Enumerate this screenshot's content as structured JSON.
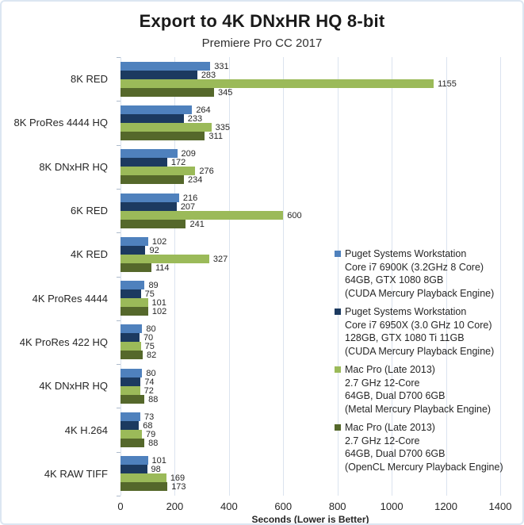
{
  "chart_data": {
    "type": "bar",
    "orientation": "horizontal",
    "title": "Export to 4K DNxHR HQ 8-bit",
    "subtitle": "Premiere Pro CC 2017",
    "xlabel": "Seconds (Lower is Better)",
    "xlim": [
      0,
      1400
    ],
    "xticks": [
      0,
      200,
      400,
      600,
      800,
      1000,
      1200,
      1400
    ],
    "grid": true,
    "grid_color": "#dbe3ef",
    "tick_color": "#aebbcc",
    "frame_border_color": "#dce6f2",
    "legend_position": "right",
    "categories": [
      "8K RED",
      "8K ProRes 4444 HQ",
      "8K DNxHR HQ",
      "6K RED",
      "4K RED",
      "4K ProRes 4444",
      "4K ProRes 422 HQ",
      "4K DNxHR HQ",
      "4K H.264",
      "4K RAW TIFF"
    ],
    "series": [
      {
        "name": "Puget Systems Workstation Core i7 6900K (3.2GHz 8 Core) 64GB, GTX 1080 8GB (CUDA Mercury Playback Engine)",
        "legend_lines": [
          "Puget Systems Workstation",
          "Core i7 6900K (3.2GHz 8 Core)",
          "64GB, GTX 1080 8GB",
          "(CUDA Mercury Playback Engine)"
        ],
        "color": "#4f81bd",
        "values": [
          331,
          264,
          209,
          216,
          102,
          89,
          80,
          80,
          73,
          101
        ]
      },
      {
        "name": "Puget Systems Workstation Core i7 6950X (3.0 GHz 10 Core) 128GB, GTX 1080 Ti 11GB (CUDA Mercury Playback Engine)",
        "legend_lines": [
          "Puget Systems Workstation",
          "Core i7 6950X (3.0 GHz 10 Core)",
          "128GB, GTX 1080 Ti 11GB",
          "(CUDA Mercury Playback Engine)"
        ],
        "color": "#1c3a60",
        "values": [
          283,
          233,
          172,
          207,
          92,
          75,
          70,
          74,
          68,
          98
        ]
      },
      {
        "name": "Mac Pro (Late 2013) 2.7 GHz 12-Core 64GB, Dual D700 6GB (Metal Mercury Playback Engine)",
        "legend_lines": [
          "Mac Pro (Late 2013)",
          "2.7 GHz 12-Core",
          "64GB, Dual D700 6GB",
          "(Metal Mercury Playback Engine)"
        ],
        "color": "#9bba59",
        "values": [
          1155,
          335,
          276,
          600,
          327,
          101,
          75,
          72,
          79,
          169
        ]
      },
      {
        "name": "Mac Pro (Late 2013) 2.7 GHz 12-Core 64GB, Dual D700 6GB (OpenCL Mercury Playback Engine)",
        "legend_lines": [
          "Mac Pro (Late 2013)",
          "2.7 GHz 12-Core",
          "64GB, Dual D700 6GB",
          "(OpenCL Mercury Playback Engine)"
        ],
        "color": "#55682b",
        "values": [
          345,
          311,
          234,
          241,
          114,
          102,
          82,
          88,
          88,
          173
        ]
      }
    ]
  }
}
